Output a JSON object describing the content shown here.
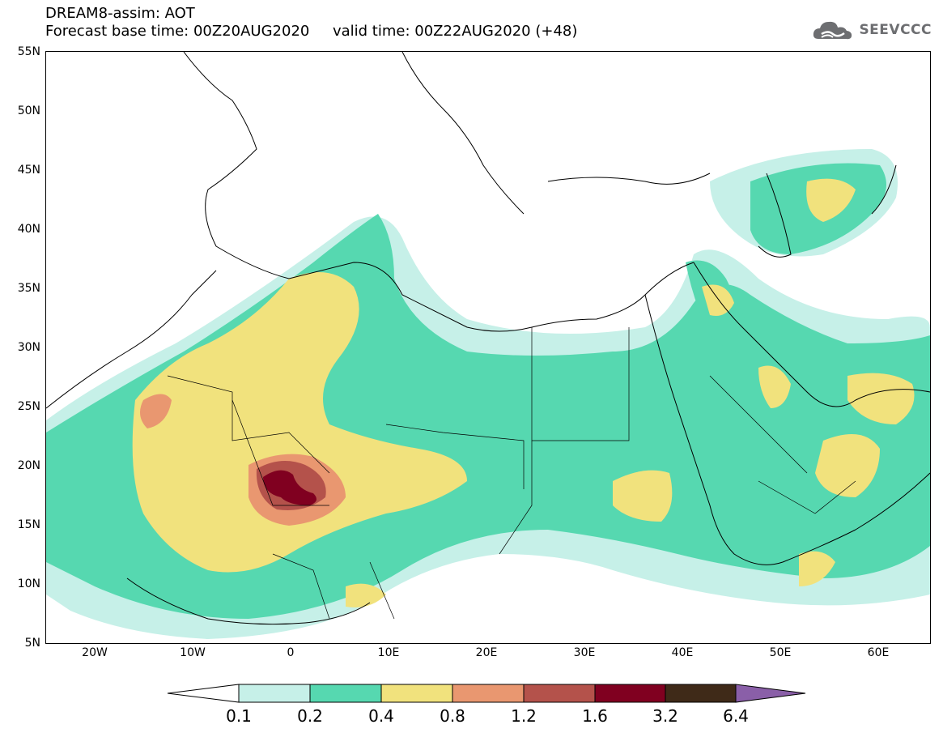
{
  "title": {
    "line1": "DREAM8-assim: AOT",
    "line2": "Forecast base time: 00Z20AUG2020     valid time: 00Z22AUG2020 (+48)"
  },
  "logo": {
    "text": "SEEVCCC",
    "icon": "cloud-icon"
  },
  "map": {
    "lon_range": [
      -25,
      65
    ],
    "lat_range": [
      5,
      55
    ],
    "lat_labels": [
      "55N",
      "50N",
      "45N",
      "40N",
      "35N",
      "30N",
      "25N",
      "20N",
      "15N",
      "10N",
      "5N"
    ],
    "lon_labels": [
      "20W",
      "10W",
      "0",
      "10E",
      "20E",
      "30E",
      "40E",
      "50E",
      "60E"
    ],
    "colors": {
      "c1": "#c6f0e8",
      "c2": "#56d8b0",
      "c3": "#f1e27d",
      "c4": "#e99770",
      "c5": "#b4524b",
      "c6": "#800020",
      "c7": "#3f2a18",
      "c8": "#8a5fa8",
      "coast": "#000000"
    }
  },
  "colorbar": {
    "labels": [
      "0.1",
      "0.2",
      "0.4",
      "0.8",
      "1.2",
      "1.6",
      "3.2",
      "6.4"
    ],
    "colors": [
      "#c6f0e8",
      "#56d8b0",
      "#f1e27d",
      "#e99770",
      "#b4524b",
      "#800020",
      "#3f2a18"
    ]
  }
}
